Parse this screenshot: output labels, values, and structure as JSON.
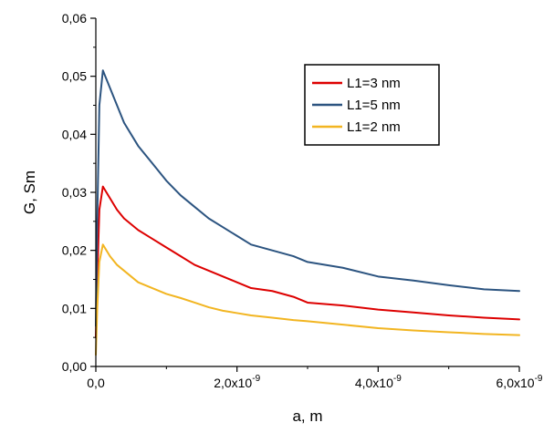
{
  "chart_data": {
    "type": "line",
    "title": "",
    "xlabel": "a, m",
    "ylabel": "G, Sm",
    "xlim": [
      0,
      6e-09
    ],
    "ylim": [
      0,
      0.06
    ],
    "grid": false,
    "legend_position": "top-right",
    "x_ticks": [
      {
        "value": 0,
        "mantissa": "0,0",
        "exp": ""
      },
      {
        "value": 2e-09,
        "mantissa": "2,0x10",
        "exp": "-9"
      },
      {
        "value": 4e-09,
        "mantissa": "4,0x10",
        "exp": "-9"
      },
      {
        "value": 6e-09,
        "mantissa": "6,0x10",
        "exp": "-9"
      }
    ],
    "y_ticks": [
      {
        "value": 0,
        "label": "0,00"
      },
      {
        "value": 0.01,
        "label": "0,01"
      },
      {
        "value": 0.02,
        "label": "0,02"
      },
      {
        "value": 0.03,
        "label": "0,03"
      },
      {
        "value": 0.04,
        "label": "0,04"
      },
      {
        "value": 0.05,
        "label": "0,05"
      },
      {
        "value": 0.06,
        "label": "0,06"
      }
    ],
    "series": [
      {
        "name": "L1=3 nm",
        "color": "#dd0000",
        "points": [
          [
            0.0,
            0.005
          ],
          [
            2e-11,
            0.015
          ],
          [
            5e-11,
            0.027
          ],
          [
            1e-10,
            0.031
          ],
          [
            2e-10,
            0.029
          ],
          [
            3e-10,
            0.027
          ],
          [
            4e-10,
            0.0255
          ],
          [
            6e-10,
            0.0235
          ],
          [
            8e-10,
            0.022
          ],
          [
            1e-09,
            0.0205
          ],
          [
            1.2e-09,
            0.019
          ],
          [
            1.4e-09,
            0.0175
          ],
          [
            1.6e-09,
            0.0165
          ],
          [
            1.8e-09,
            0.0155
          ],
          [
            2e-09,
            0.0145
          ],
          [
            2.2e-09,
            0.0135
          ],
          [
            2.5e-09,
            0.013
          ],
          [
            2.8e-09,
            0.012
          ],
          [
            3e-09,
            0.011
          ],
          [
            3.5e-09,
            0.0105
          ],
          [
            4e-09,
            0.0098
          ],
          [
            4.5e-09,
            0.0093
          ],
          [
            5e-09,
            0.0088
          ],
          [
            5.5e-09,
            0.0084
          ],
          [
            6e-09,
            0.0081
          ]
        ]
      },
      {
        "name": "L1=5 nm",
        "color": "#2c5480",
        "points": [
          [
            0.0,
            0.007
          ],
          [
            2e-11,
            0.025
          ],
          [
            5e-11,
            0.045
          ],
          [
            1e-10,
            0.051
          ],
          [
            2e-10,
            0.048
          ],
          [
            3e-10,
            0.045
          ],
          [
            4e-10,
            0.042
          ],
          [
            6e-10,
            0.038
          ],
          [
            8e-10,
            0.035
          ],
          [
            1e-09,
            0.032
          ],
          [
            1.2e-09,
            0.0295
          ],
          [
            1.4e-09,
            0.0275
          ],
          [
            1.6e-09,
            0.0255
          ],
          [
            1.8e-09,
            0.024
          ],
          [
            2e-09,
            0.0225
          ],
          [
            2.2e-09,
            0.021
          ],
          [
            2.5e-09,
            0.02
          ],
          [
            2.8e-09,
            0.019
          ],
          [
            3e-09,
            0.018
          ],
          [
            3.5e-09,
            0.017
          ],
          [
            4e-09,
            0.0155
          ],
          [
            4.5e-09,
            0.0148
          ],
          [
            5e-09,
            0.014
          ],
          [
            5.5e-09,
            0.0133
          ],
          [
            6e-09,
            0.013
          ]
        ]
      },
      {
        "name": "L1=2 nm",
        "color": "#f2b521",
        "points": [
          [
            0.0,
            0.002
          ],
          [
            2e-11,
            0.01
          ],
          [
            5e-11,
            0.018
          ],
          [
            1e-10,
            0.021
          ],
          [
            2e-10,
            0.019
          ],
          [
            3e-10,
            0.0175
          ],
          [
            4e-10,
            0.0165
          ],
          [
            6e-10,
            0.0145
          ],
          [
            8e-10,
            0.0135
          ],
          [
            1e-09,
            0.0125
          ],
          [
            1.2e-09,
            0.0118
          ],
          [
            1.4e-09,
            0.011
          ],
          [
            1.6e-09,
            0.0102
          ],
          [
            1.8e-09,
            0.0096
          ],
          [
            2e-09,
            0.0092
          ],
          [
            2.2e-09,
            0.0088
          ],
          [
            2.5e-09,
            0.0084
          ],
          [
            2.8e-09,
            0.008
          ],
          [
            3e-09,
            0.0078
          ],
          [
            3.5e-09,
            0.0072
          ],
          [
            4e-09,
            0.0066
          ],
          [
            4.5e-09,
            0.0062
          ],
          [
            5e-09,
            0.0059
          ],
          [
            5.5e-09,
            0.0056
          ],
          [
            6e-09,
            0.0054
          ]
        ]
      }
    ]
  }
}
